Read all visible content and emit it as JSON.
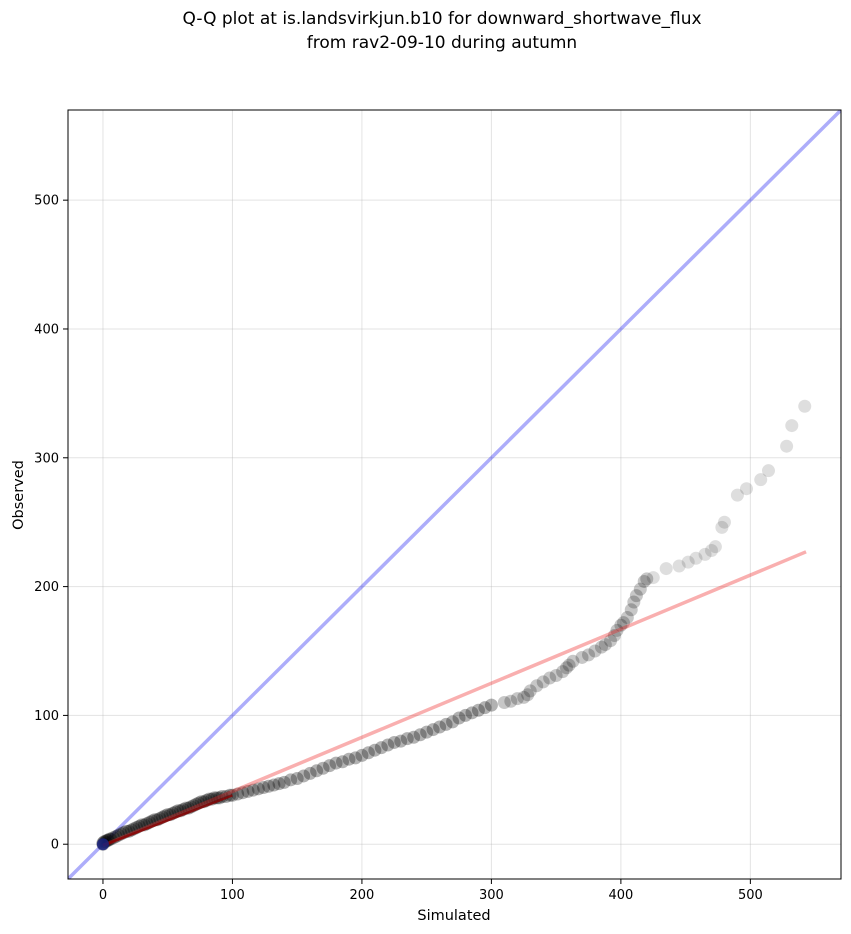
{
  "chart_data": {
    "type": "scatter",
    "title": "Q-Q plot at is.landsvirkjun.b10 for downward_shortwave_flux",
    "subtitle": "from rav2-09-10 during autumn",
    "xlabel": "Simulated",
    "ylabel": "Observed",
    "xlim": [
      -27,
      570
    ],
    "ylim": [
      -27,
      570
    ],
    "xticks": [
      0,
      100,
      200,
      300,
      400,
      500
    ],
    "yticks": [
      0,
      100,
      200,
      300,
      400,
      500
    ],
    "grid": true,
    "colors": {
      "points": "#000000",
      "identity_line": "#0000ee",
      "fit_line": "#ee2222",
      "low_quantile_line": "#8b0000",
      "low_quantile_marker": "#1a237e"
    },
    "identity_line": {
      "x": [
        -27,
        570
      ],
      "y": [
        -27,
        570
      ]
    },
    "fit_line": {
      "x": [
        0,
        543
      ],
      "y": [
        -1,
        227
      ]
    },
    "low_quantile_line": {
      "x": [
        0,
        100
      ],
      "y": [
        -1,
        38
      ]
    },
    "series": [
      {
        "points": [
          [
            0,
            0
          ],
          [
            0,
            1
          ],
          [
            1,
            2
          ],
          [
            2,
            2
          ],
          [
            3,
            3
          ],
          [
            4,
            3
          ],
          [
            5,
            4
          ],
          [
            6,
            4
          ],
          [
            8,
            5
          ],
          [
            10,
            6
          ],
          [
            12,
            7
          ],
          [
            14,
            8
          ],
          [
            16,
            9
          ],
          [
            18,
            10
          ],
          [
            20,
            10
          ],
          [
            22,
            11
          ],
          [
            24,
            12
          ],
          [
            26,
            13
          ],
          [
            28,
            14
          ],
          [
            30,
            15
          ],
          [
            32,
            15
          ],
          [
            34,
            16
          ],
          [
            36,
            17
          ],
          [
            38,
            18
          ],
          [
            40,
            19
          ],
          [
            42,
            19
          ],
          [
            44,
            20
          ],
          [
            46,
            21
          ],
          [
            48,
            22
          ],
          [
            50,
            23
          ],
          [
            52,
            23
          ],
          [
            54,
            24
          ],
          [
            56,
            25
          ],
          [
            58,
            26
          ],
          [
            60,
            26
          ],
          [
            62,
            27
          ],
          [
            64,
            28
          ],
          [
            66,
            28
          ],
          [
            68,
            29
          ],
          [
            70,
            30
          ],
          [
            72,
            31
          ],
          [
            74,
            32
          ],
          [
            76,
            33
          ],
          [
            78,
            33
          ],
          [
            80,
            34
          ],
          [
            82,
            35
          ],
          [
            84,
            35
          ],
          [
            86,
            36
          ],
          [
            88,
            36
          ],
          [
            90,
            36
          ],
          [
            92,
            37
          ],
          [
            95,
            37
          ],
          [
            98,
            38
          ],
          [
            100,
            38
          ],
          [
            104,
            39
          ],
          [
            108,
            40
          ],
          [
            112,
            41
          ],
          [
            116,
            42
          ],
          [
            120,
            43
          ],
          [
            124,
            44
          ],
          [
            128,
            45
          ],
          [
            132,
            46
          ],
          [
            136,
            47
          ],
          [
            140,
            48
          ],
          [
            145,
            50
          ],
          [
            150,
            51
          ],
          [
            155,
            53
          ],
          [
            160,
            55
          ],
          [
            165,
            57
          ],
          [
            170,
            59
          ],
          [
            175,
            61
          ],
          [
            180,
            63
          ],
          [
            185,
            64
          ],
          [
            190,
            66
          ],
          [
            195,
            67
          ],
          [
            200,
            69
          ],
          [
            205,
            71
          ],
          [
            210,
            73
          ],
          [
            215,
            75
          ],
          [
            220,
            77
          ],
          [
            225,
            79
          ],
          [
            230,
            80
          ],
          [
            235,
            82
          ],
          [
            240,
            83
          ],
          [
            245,
            85
          ],
          [
            250,
            87
          ],
          [
            255,
            89
          ],
          [
            260,
            91
          ],
          [
            265,
            93
          ],
          [
            270,
            95
          ],
          [
            275,
            98
          ],
          [
            280,
            100
          ],
          [
            285,
            102
          ],
          [
            290,
            104
          ],
          [
            295,
            106
          ],
          [
            300,
            108
          ],
          [
            310,
            110
          ],
          [
            315,
            111
          ],
          [
            320,
            113
          ],
          [
            325,
            114
          ],
          [
            328,
            116
          ],
          [
            330,
            119
          ],
          [
            335,
            123
          ],
          [
            340,
            126
          ],
          [
            345,
            129
          ],
          [
            350,
            131
          ],
          [
            355,
            134
          ],
          [
            358,
            137
          ],
          [
            360,
            139
          ],
          [
            363,
            142
          ],
          [
            370,
            145
          ],
          [
            375,
            147
          ],
          [
            380,
            150
          ],
          [
            385,
            153
          ],
          [
            388,
            155
          ],
          [
            392,
            158
          ],
          [
            395,
            162
          ],
          [
            397,
            166
          ],
          [
            400,
            170
          ],
          [
            402,
            172
          ],
          [
            405,
            176
          ],
          [
            408,
            182
          ],
          [
            410,
            188
          ],
          [
            412,
            193
          ],
          [
            415,
            198
          ],
          [
            418,
            204
          ],
          [
            420,
            206
          ],
          [
            425,
            207
          ],
          [
            435,
            214
          ],
          [
            445,
            216
          ],
          [
            452,
            219
          ],
          [
            458,
            222
          ],
          [
            465,
            225
          ],
          [
            470,
            228
          ],
          [
            473,
            231
          ],
          [
            478,
            246
          ],
          [
            480,
            250
          ],
          [
            490,
            271
          ],
          [
            497,
            276
          ],
          [
            508,
            283
          ],
          [
            514,
            290
          ],
          [
            528,
            309
          ],
          [
            532,
            325
          ],
          [
            542,
            340
          ]
        ]
      }
    ]
  }
}
